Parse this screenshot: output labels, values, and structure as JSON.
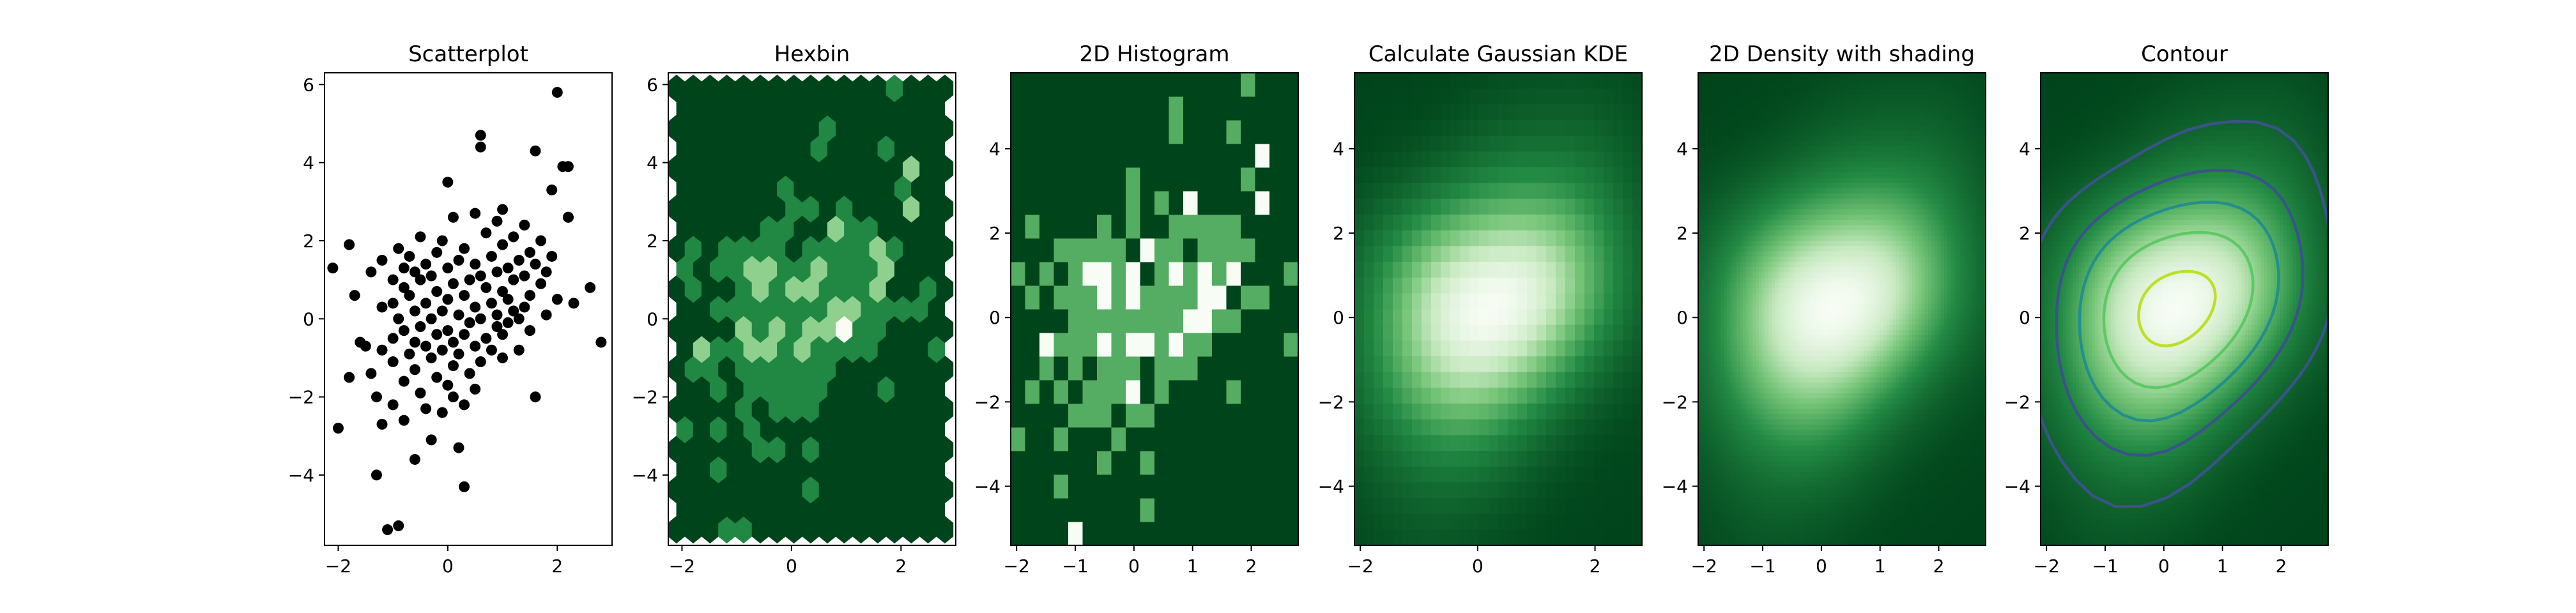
{
  "figure": {
    "background": "#ffffff"
  },
  "colors": {
    "dark_green": "#00441b",
    "mid_green": "#238b45",
    "light_green": "#74c476",
    "pale_green": "#c7e9c0",
    "near_white": "#f7fcf5",
    "scatter_point": "#000000",
    "contour_1": "#3b528b",
    "contour_2": "#21908c",
    "contour_3": "#5ec962",
    "contour_4": "#bddf26"
  },
  "chart_data": [
    {
      "type": "scatter",
      "title": "Scatterplot",
      "xlabel": "",
      "ylabel": "",
      "xlim": [
        -2.25,
        3.0
      ],
      "ylim": [
        -5.8,
        6.3
      ],
      "xticks": [
        -2,
        0,
        2
      ],
      "yticks": [
        -4,
        -2,
        0,
        2,
        4,
        6
      ],
      "xtick_labels": [
        "−2",
        "0",
        "2"
      ],
      "ytick_labels": [
        "−4",
        "−2",
        "0",
        "2",
        "4",
        "6"
      ],
      "grid": false,
      "points": [
        [
          -2.1,
          1.3
        ],
        [
          -2.0,
          -2.8
        ],
        [
          -1.8,
          1.9
        ],
        [
          -1.8,
          -1.5
        ],
        [
          -1.7,
          0.6
        ],
        [
          -1.6,
          -0.6
        ],
        [
          -1.5,
          -0.7
        ],
        [
          -1.4,
          1.2
        ],
        [
          -1.4,
          -1.4
        ],
        [
          -1.3,
          -2.0
        ],
        [
          -1.3,
          -4.0
        ],
        [
          -1.2,
          1.5
        ],
        [
          -1.2,
          0.3
        ],
        [
          -1.2,
          -0.8
        ],
        [
          -1.2,
          -2.7
        ],
        [
          -1.1,
          -5.4
        ],
        [
          -1.0,
          1.0
        ],
        [
          -1.0,
          0.4
        ],
        [
          -1.0,
          -0.5
        ],
        [
          -1.0,
          -1.1
        ],
        [
          -1.0,
          -2.2
        ],
        [
          -0.9,
          -5.3
        ],
        [
          -0.9,
          1.8
        ],
        [
          -0.9,
          0.0
        ],
        [
          -0.8,
          1.3
        ],
        [
          -0.8,
          0.8
        ],
        [
          -0.8,
          -0.3
        ],
        [
          -0.8,
          -1.6
        ],
        [
          -0.8,
          -2.6
        ],
        [
          -0.7,
          1.6
        ],
        [
          -0.7,
          0.6
        ],
        [
          -0.7,
          -0.9
        ],
        [
          -0.6,
          1.2
        ],
        [
          -0.6,
          0.2
        ],
        [
          -0.6,
          -0.6
        ],
        [
          -0.6,
          -1.3
        ],
        [
          -0.6,
          -3.6
        ],
        [
          -0.5,
          2.1
        ],
        [
          -0.5,
          1.0
        ],
        [
          -0.5,
          -0.2
        ],
        [
          -0.5,
          -1.9
        ],
        [
          -0.4,
          1.4
        ],
        [
          -0.4,
          0.4
        ],
        [
          -0.4,
          -0.7
        ],
        [
          -0.4,
          -2.3
        ],
        [
          -0.3,
          1.1
        ],
        [
          -0.3,
          0.0
        ],
        [
          -0.3,
          -1.0
        ],
        [
          -0.3,
          -3.1
        ],
        [
          -0.2,
          1.7
        ],
        [
          -0.2,
          0.7
        ],
        [
          -0.2,
          -0.4
        ],
        [
          -0.2,
          -1.5
        ],
        [
          -0.1,
          2.0
        ],
        [
          -0.1,
          0.2
        ],
        [
          -0.1,
          -0.8
        ],
        [
          -0.1,
          -2.4
        ],
        [
          0.0,
          3.5
        ],
        [
          0.0,
          1.3
        ],
        [
          0.0,
          0.5
        ],
        [
          0.0,
          -0.3
        ],
        [
          0.0,
          -1.7
        ],
        [
          0.1,
          2.6
        ],
        [
          0.1,
          0.9
        ],
        [
          0.1,
          -0.6
        ],
        [
          0.1,
          -1.2
        ],
        [
          0.1,
          -2.0
        ],
        [
          0.2,
          1.5
        ],
        [
          0.2,
          0.1
        ],
        [
          0.2,
          -0.9
        ],
        [
          0.2,
          -3.3
        ],
        [
          0.3,
          1.8
        ],
        [
          0.3,
          0.6
        ],
        [
          0.3,
          -0.4
        ],
        [
          0.3,
          -2.2
        ],
        [
          0.3,
          -4.3
        ],
        [
          0.4,
          1.0
        ],
        [
          0.4,
          -0.1
        ],
        [
          0.4,
          -1.4
        ],
        [
          0.5,
          2.7
        ],
        [
          0.5,
          1.4
        ],
        [
          0.5,
          0.3
        ],
        [
          0.5,
          -0.7
        ],
        [
          0.5,
          -1.8
        ],
        [
          0.6,
          4.4
        ],
        [
          0.6,
          4.7
        ],
        [
          0.6,
          1.1
        ],
        [
          0.6,
          0.0
        ],
        [
          0.6,
          -1.1
        ],
        [
          0.7,
          2.2
        ],
        [
          0.7,
          0.8
        ],
        [
          0.7,
          -0.5
        ],
        [
          0.8,
          1.6
        ],
        [
          0.8,
          0.4
        ],
        [
          0.8,
          -0.8
        ],
        [
          0.9,
          2.5
        ],
        [
          0.9,
          1.2
        ],
        [
          0.9,
          0.1
        ],
        [
          0.9,
          -0.2
        ],
        [
          1.0,
          2.8
        ],
        [
          1.0,
          1.9
        ],
        [
          1.0,
          0.7
        ],
        [
          1.0,
          -0.4
        ],
        [
          1.0,
          -1.0
        ],
        [
          1.1,
          1.3
        ],
        [
          1.1,
          0.5
        ],
        [
          1.1,
          -0.1
        ],
        [
          1.2,
          2.1
        ],
        [
          1.2,
          1.0
        ],
        [
          1.2,
          0.2
        ],
        [
          1.3,
          1.5
        ],
        [
          1.3,
          0.0
        ],
        [
          1.3,
          -0.8
        ],
        [
          1.4,
          2.4
        ],
        [
          1.4,
          1.1
        ],
        [
          1.4,
          0.3
        ],
        [
          1.5,
          1.7
        ],
        [
          1.5,
          0.6
        ],
        [
          1.5,
          -0.3
        ],
        [
          1.6,
          4.3
        ],
        [
          1.6,
          1.4
        ],
        [
          1.6,
          -2.0
        ],
        [
          1.7,
          2.0
        ],
        [
          1.7,
          0.9
        ],
        [
          1.8,
          1.2
        ],
        [
          1.8,
          0.1
        ],
        [
          1.9,
          3.3
        ],
        [
          1.9,
          1.6
        ],
        [
          2.0,
          5.8
        ],
        [
          2.0,
          0.5
        ],
        [
          2.1,
          3.9
        ],
        [
          2.2,
          3.9
        ],
        [
          2.2,
          2.6
        ],
        [
          2.2,
          2.6
        ],
        [
          2.3,
          0.4
        ],
        [
          2.6,
          0.8
        ],
        [
          2.8,
          -0.6
        ]
      ]
    },
    {
      "type": "hexbin",
      "title": "Hexbin",
      "xlabel": "",
      "ylabel": "",
      "xlim": [
        -2.25,
        3.0
      ],
      "ylim": [
        -5.8,
        6.3
      ],
      "xticks": [
        -2,
        0,
        2
      ],
      "yticks": [
        -4,
        -2,
        0,
        2,
        4,
        6
      ],
      "xtick_labels": [
        "−2",
        "0",
        "2"
      ],
      "ytick_labels": [
        "−4",
        "−2",
        "0",
        "2",
        "4",
        "6"
      ],
      "grid": false,
      "colormap": "BuGn_r"
    },
    {
      "type": "heatmap",
      "title": "2D Histogram",
      "xlabel": "",
      "ylabel": "",
      "xlim": [
        -2.1,
        2.8
      ],
      "ylim": [
        -5.4,
        5.8
      ],
      "xticks": [
        -2,
        -1,
        0,
        1,
        2
      ],
      "yticks": [
        -4,
        -2,
        0,
        2,
        4
      ],
      "xtick_labels": [
        "−2",
        "−1",
        "0",
        "1",
        "2"
      ],
      "ytick_labels": [
        "−4",
        "−2",
        "0",
        "2",
        "4"
      ],
      "grid": false,
      "colormap": "BuGn_r",
      "bins": 20
    },
    {
      "type": "heatmap",
      "title": "Calculate Gaussian KDE",
      "xlabel": "",
      "ylabel": "",
      "xlim": [
        -2.1,
        2.8
      ],
      "ylim": [
        -5.4,
        5.8
      ],
      "xticks": [
        -2,
        0,
        2
      ],
      "yticks": [
        -4,
        -2,
        0,
        2,
        4
      ],
      "xtick_labels": [
        "−2",
        "0",
        "2"
      ],
      "ytick_labels": [
        "−4",
        "−2",
        "0",
        "2",
        "4"
      ],
      "grid": false,
      "colormap": "BuGn_r",
      "density_peak": [
        0.3,
        0.6
      ]
    },
    {
      "type": "heatmap",
      "title": "2D Density with shading",
      "xlabel": "",
      "ylabel": "",
      "xlim": [
        -2.1,
        2.8
      ],
      "ylim": [
        -5.4,
        5.8
      ],
      "xticks": [
        -2,
        -1,
        0,
        1,
        2
      ],
      "yticks": [
        -4,
        -2,
        0,
        2,
        4
      ],
      "xtick_labels": [
        "−2",
        "−1",
        "0",
        "1",
        "2"
      ],
      "ytick_labels": [
        "−4",
        "−2",
        "0",
        "2",
        "4"
      ],
      "grid": false,
      "colormap": "BuGn_r",
      "density_peak": [
        0.3,
        0.6
      ],
      "shading": "gouraud"
    },
    {
      "type": "contour",
      "title": "Contour",
      "xlabel": "",
      "ylabel": "",
      "xlim": [
        -2.1,
        2.8
      ],
      "ylim": [
        -5.4,
        5.8
      ],
      "xticks": [
        -2,
        -1,
        0,
        1,
        2
      ],
      "yticks": [
        -4,
        -2,
        0,
        2,
        4
      ],
      "xtick_labels": [
        "−2",
        "−1",
        "0",
        "1",
        "2"
      ],
      "ytick_labels": [
        "−4",
        "−2",
        "0",
        "2",
        "4"
      ],
      "grid": false,
      "colormap": "BuGn_r",
      "density_peak": [
        0.3,
        0.6
      ],
      "contour_levels": 5
    }
  ]
}
